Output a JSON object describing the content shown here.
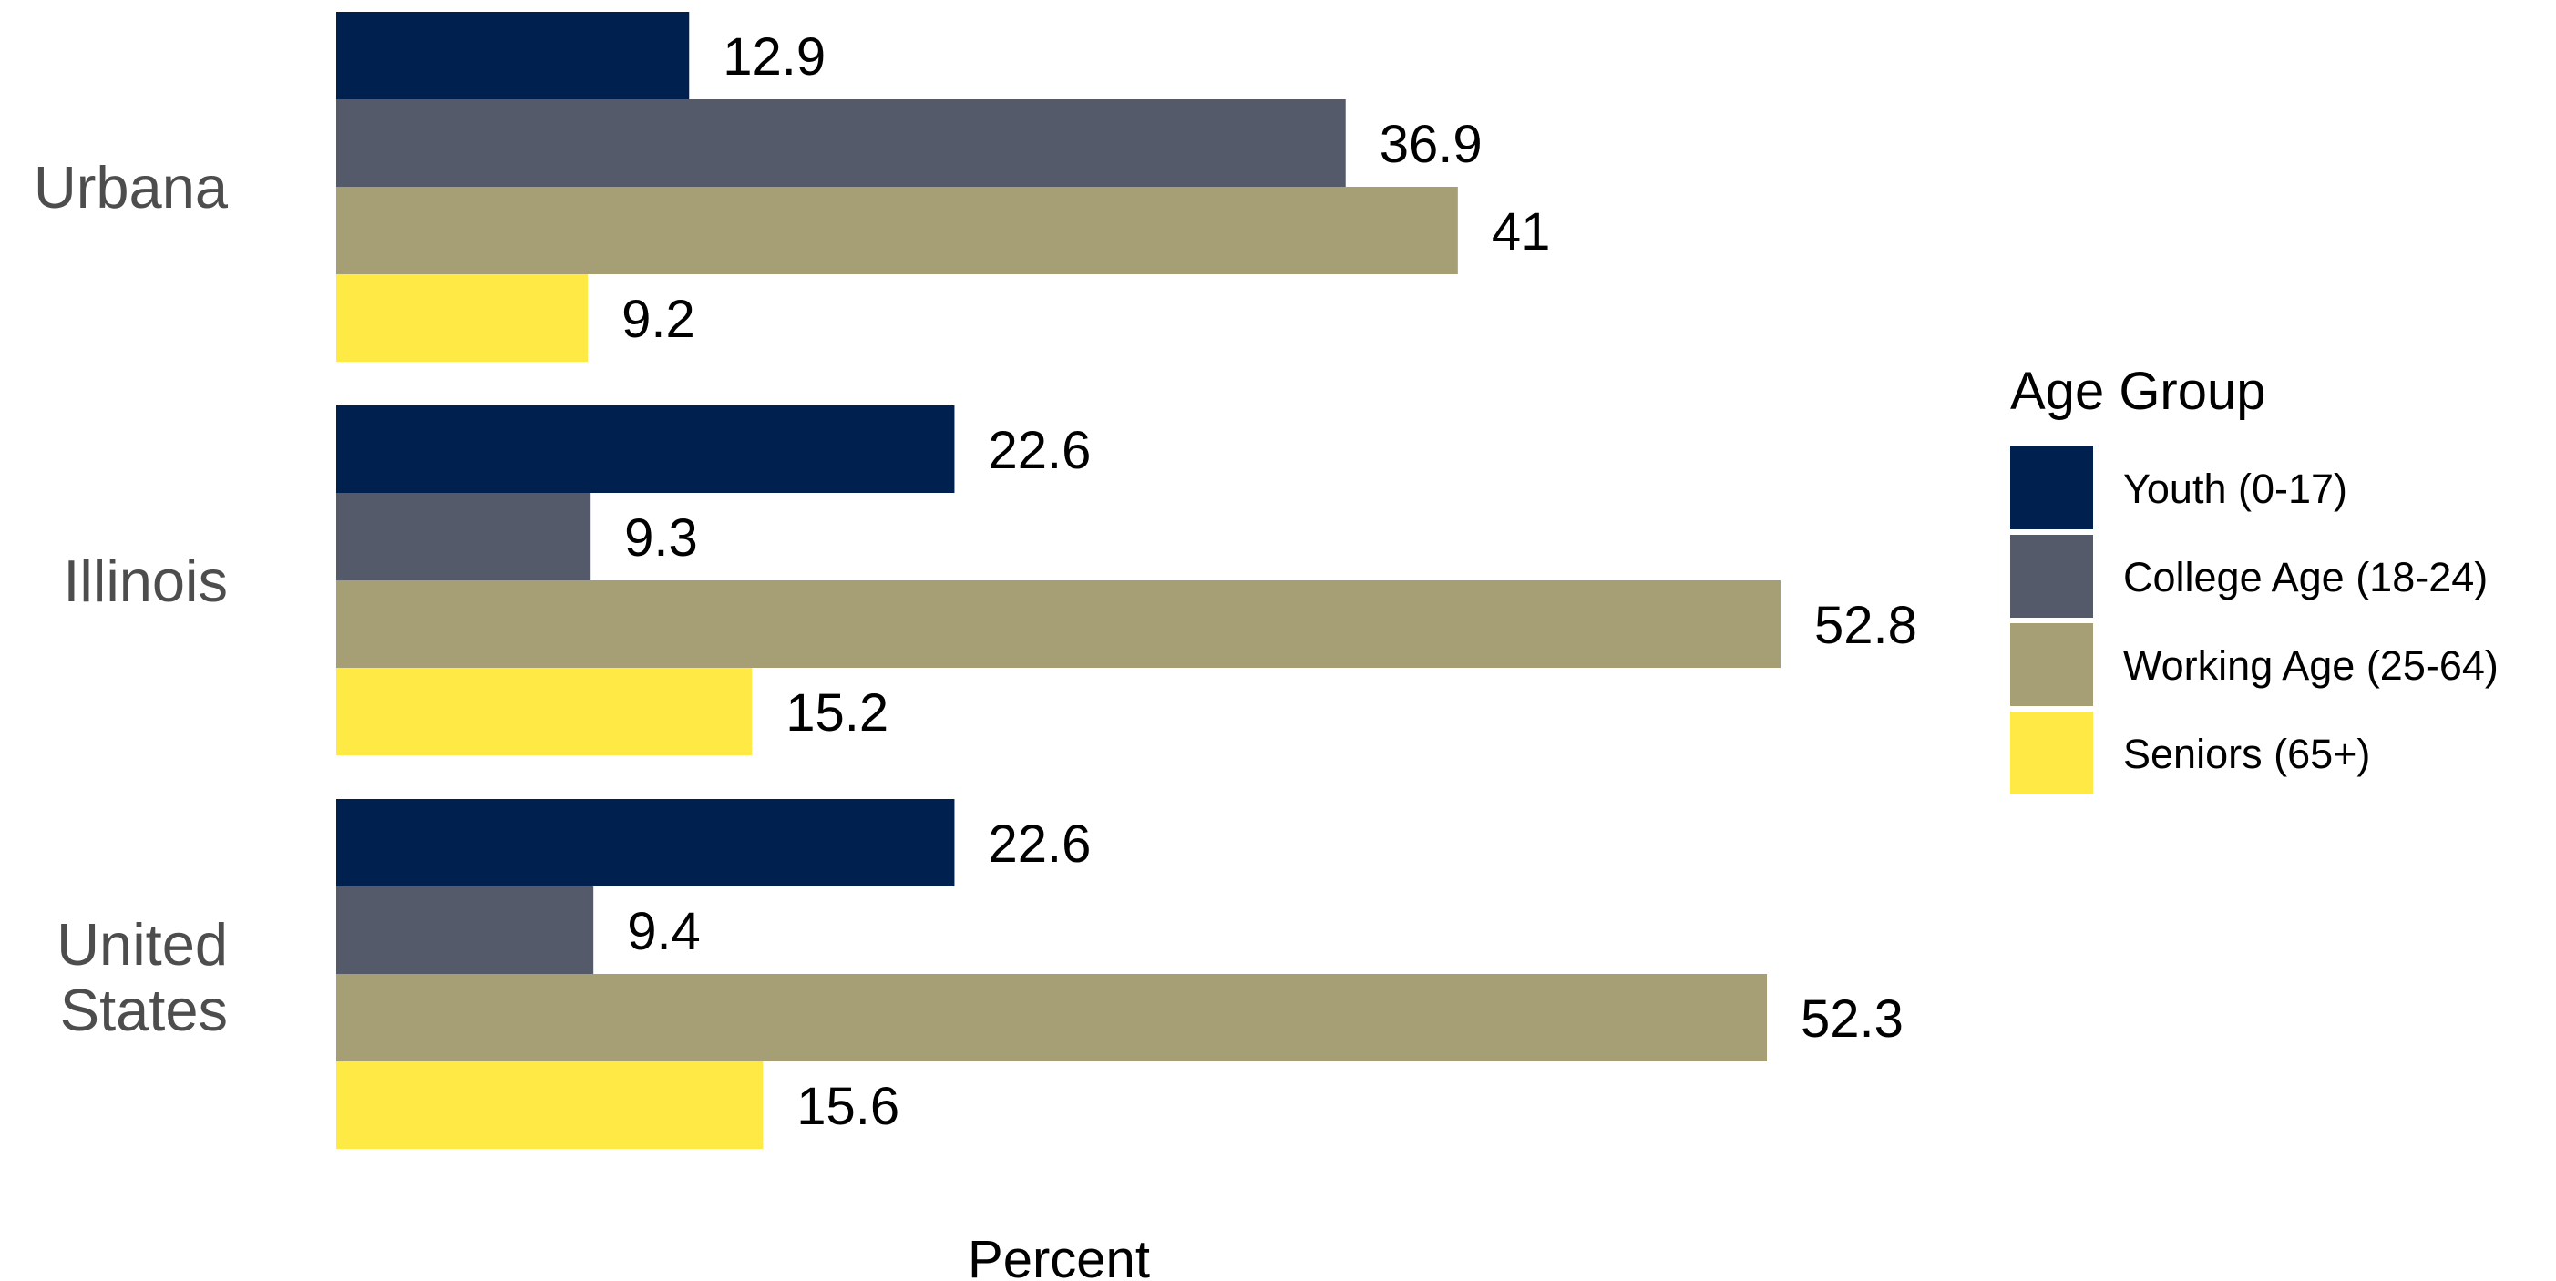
{
  "chart_data": {
    "type": "bar",
    "orientation": "horizontal",
    "categories": [
      "Urbana",
      "Illinois",
      "United States"
    ],
    "series": [
      {
        "name": "Youth (0-17)",
        "color": "#002050",
        "values": [
          12.9,
          22.6,
          22.6
        ]
      },
      {
        "name": "College Age (18-24)",
        "color": "#545a6a",
        "values": [
          36.9,
          9.3,
          9.4
        ]
      },
      {
        "name": "Working Age (25-64)",
        "color": "#a69e74",
        "values": [
          41,
          52.8,
          52.3
        ]
      },
      {
        "name": "Seniors (65+)",
        "color": "#ffe945",
        "values": [
          9.2,
          15.2,
          15.6
        ]
      }
    ],
    "value_labels": [
      [
        "12.9",
        "22.6",
        "22.6"
      ],
      [
        "36.9",
        "9.3",
        "9.4"
      ],
      [
        "41",
        "52.8",
        "52.3"
      ],
      [
        "9.2",
        "15.2",
        "15.6"
      ]
    ],
    "xlabel": "Percent",
    "ylabel": "",
    "xlim": [
      0,
      60
    ],
    "grid": false,
    "legend": {
      "title": "Age Group",
      "position": "right"
    }
  }
}
